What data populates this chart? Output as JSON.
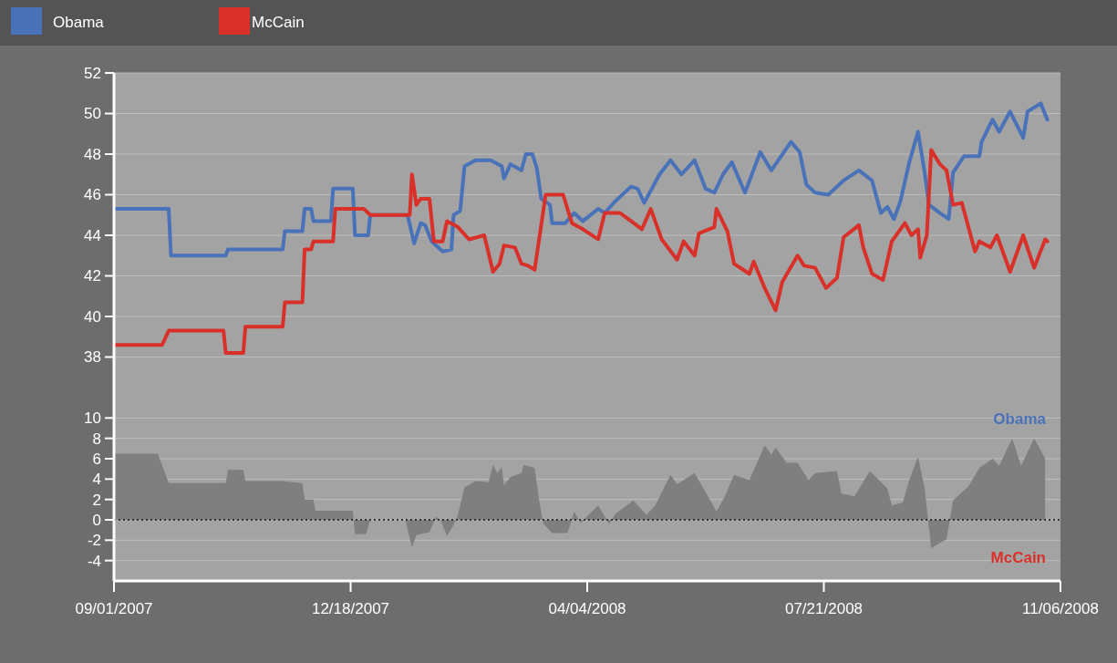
{
  "chart_data": [
    {
      "type": "line",
      "legend": "top",
      "grid": "y",
      "tick_labels": "y",
      "xlim": [
        "2007-09-01",
        "2008-11-06"
      ],
      "ylim": [
        36,
        52
      ],
      "yticks": [
        38,
        40,
        42,
        44,
        46,
        48,
        50,
        52
      ],
      "series": [
        {
          "name": "Obama",
          "color": "#4a72b8",
          "x": [
            "2007-09-01",
            "2007-09-26",
            "2007-09-27",
            "2007-10-22",
            "2007-10-23",
            "2007-11-17",
            "2007-11-18",
            "2007-11-26",
            "2007-11-27",
            "2007-11-30",
            "2007-12-01",
            "2007-12-09",
            "2007-12-10",
            "2007-12-19",
            "2007-12-20",
            "2007-12-26",
            "2007-12-27",
            "2008-01-13",
            "2008-01-16",
            "2008-01-19",
            "2008-01-21",
            "2008-01-24",
            "2008-01-29",
            "2008-02-02",
            "2008-02-03",
            "2008-02-06",
            "2008-02-08",
            "2008-02-13",
            "2008-02-20",
            "2008-02-25",
            "2008-02-26",
            "2008-02-29",
            "2008-03-05",
            "2008-03-07",
            "2008-03-10",
            "2008-03-12",
            "2008-03-14",
            "2008-03-18",
            "2008-03-19",
            "2008-03-25",
            "2008-03-29",
            "2008-04-02",
            "2008-04-09",
            "2008-04-12",
            "2008-04-17",
            "2008-04-24",
            "2008-04-27",
            "2008-04-30",
            "2008-05-07",
            "2008-05-12",
            "2008-05-17",
            "2008-05-23",
            "2008-05-28",
            "2008-06-01",
            "2008-06-05",
            "2008-06-09",
            "2008-06-15",
            "2008-06-22",
            "2008-06-27",
            "2008-07-06",
            "2008-07-10",
            "2008-07-13",
            "2008-07-17",
            "2008-07-23",
            "2008-07-30",
            "2008-08-06",
            "2008-08-12",
            "2008-08-16",
            "2008-08-19",
            "2008-08-22",
            "2008-08-25",
            "2008-08-29",
            "2008-09-02",
            "2008-09-05",
            "2008-09-07",
            "2008-09-12",
            "2008-09-16",
            "2008-09-18",
            "2008-09-23",
            "2008-09-30",
            "2008-10-01",
            "2008-10-06",
            "2008-10-09",
            "2008-10-14",
            "2008-10-20",
            "2008-10-22",
            "2008-10-28",
            "2008-10-31"
          ],
          "values": [
            45.3,
            45.3,
            43.0,
            43.0,
            43.3,
            43.3,
            44.2,
            44.2,
            45.3,
            45.3,
            44.7,
            44.7,
            46.3,
            46.3,
            44.0,
            44.0,
            45.0,
            45.0,
            43.6,
            44.6,
            44.5,
            43.7,
            43.2,
            43.3,
            45.0,
            45.2,
            47.4,
            47.7,
            47.7,
            47.4,
            46.8,
            47.5,
            47.2,
            48.0,
            48.0,
            47.3,
            45.8,
            45.5,
            44.6,
            44.6,
            45.1,
            44.7,
            45.3,
            45.1,
            45.7,
            46.4,
            46.3,
            45.6,
            47.0,
            47.7,
            47.0,
            47.7,
            46.3,
            46.1,
            47.0,
            47.6,
            46.1,
            48.1,
            47.2,
            48.6,
            48.1,
            46.5,
            46.1,
            46.0,
            46.7,
            47.2,
            46.7,
            45.1,
            45.4,
            44.8,
            45.7,
            47.6,
            49.1,
            47.1,
            45.5,
            45.1,
            44.8,
            47.1,
            47.9,
            47.9,
            48.6,
            49.7,
            49.1,
            50.1,
            48.8,
            50.1,
            50.5,
            49.7
          ]
        },
        {
          "name": "McCain",
          "color": "#d9302a",
          "x": [
            "2007-09-01",
            "2007-09-23",
            "2007-09-26",
            "2007-10-21",
            "2007-10-22",
            "2007-10-30",
            "2007-10-31",
            "2007-11-17",
            "2007-11-18",
            "2007-11-26",
            "2007-11-27",
            "2007-11-30",
            "2007-12-01",
            "2007-12-10",
            "2007-12-11",
            "2007-12-24",
            "2007-12-27",
            "2008-01-14",
            "2008-01-15",
            "2008-01-17",
            "2008-01-19",
            "2008-01-23",
            "2008-01-25",
            "2008-01-29",
            "2008-01-31",
            "2008-02-05",
            "2008-02-10",
            "2008-02-17",
            "2008-02-21",
            "2008-02-24",
            "2008-02-26",
            "2008-03-02",
            "2008-03-05",
            "2008-03-08",
            "2008-03-11",
            "2008-03-14",
            "2008-03-16",
            "2008-03-18",
            "2008-03-24",
            "2008-03-28",
            "2008-04-02",
            "2008-04-09",
            "2008-04-12",
            "2008-04-19",
            "2008-04-24",
            "2008-04-29",
            "2008-05-03",
            "2008-05-08",
            "2008-05-15",
            "2008-05-18",
            "2008-05-23",
            "2008-05-25",
            "2008-06-01",
            "2008-06-02",
            "2008-06-07",
            "2008-06-10",
            "2008-06-17",
            "2008-06-19",
            "2008-06-24",
            "2008-06-29",
            "2008-07-02",
            "2008-07-09",
            "2008-07-12",
            "2008-07-17",
            "2008-07-22",
            "2008-07-27",
            "2008-07-30",
            "2008-08-06",
            "2008-08-08",
            "2008-08-12",
            "2008-08-17",
            "2008-08-21",
            "2008-08-27",
            "2008-08-30",
            "2008-09-02",
            "2008-09-03",
            "2008-09-06",
            "2008-09-08",
            "2008-09-12",
            "2008-09-15",
            "2008-09-18",
            "2008-09-22",
            "2008-09-28",
            "2008-09-30",
            "2008-10-05",
            "2008-10-08",
            "2008-10-14",
            "2008-10-20",
            "2008-10-25",
            "2008-10-30",
            "2008-10-31"
          ],
          "values": [
            38.6,
            38.6,
            39.3,
            39.3,
            38.2,
            38.2,
            39.5,
            39.5,
            40.7,
            40.7,
            43.3,
            43.3,
            43.7,
            43.7,
            45.3,
            45.3,
            45.0,
            45.0,
            47.0,
            45.5,
            45.8,
            45.8,
            43.7,
            43.7,
            44.7,
            44.4,
            43.8,
            44.0,
            42.2,
            42.6,
            43.5,
            43.4,
            42.6,
            42.5,
            42.3,
            44.5,
            46.0,
            46.0,
            46.0,
            44.6,
            44.3,
            43.8,
            45.1,
            45.1,
            44.7,
            44.3,
            45.3,
            43.8,
            42.8,
            43.7,
            43.0,
            44.1,
            44.4,
            45.3,
            44.2,
            42.6,
            42.1,
            42.7,
            41.4,
            40.3,
            41.7,
            43.0,
            42.5,
            42.4,
            41.4,
            41.9,
            43.9,
            44.5,
            43.4,
            42.1,
            41.8,
            43.7,
            44.6,
            44.0,
            44.3,
            42.9,
            44.0,
            48.2,
            47.5,
            47.2,
            45.5,
            45.6,
            43.2,
            43.7,
            43.4,
            44.0,
            42.2,
            44.0,
            42.4,
            43.8,
            43.7
          ]
        }
      ]
    },
    {
      "type": "area",
      "grid": "y",
      "xlim": [
        "2007-09-01",
        "2008-11-06"
      ],
      "xticks": [
        {
          "value": "2007-09-01",
          "label": "09/01/2007"
        },
        {
          "value": "2007-12-18",
          "label": "12/18/2007"
        },
        {
          "value": "2008-04-04",
          "label": "04/04/2008"
        },
        {
          "value": "2008-07-21",
          "label": "07/21/2008"
        },
        {
          "value": "2008-11-06",
          "label": "11/06/2008"
        }
      ],
      "ylim": [
        -6,
        12
      ],
      "yticks": [
        -4,
        -2,
        0,
        2,
        4,
        6,
        8,
        10
      ],
      "ref_lines": [
        {
          "axis": "y",
          "value": 0,
          "line_style": "dotted",
          "color": "#333333"
        }
      ],
      "annotations": [
        "Obama",
        "McCain"
      ],
      "series": [
        {
          "color": "#7f7f7f",
          "x": [
            "2007-09-01",
            "2007-09-21",
            "2007-09-26",
            "2007-10-22",
            "2007-10-23",
            "2007-10-30",
            "2007-10-31",
            "2007-11-17",
            "2007-11-26",
            "2007-11-27",
            "2007-12-01",
            "2007-12-02",
            "2007-12-19",
            "2007-12-20",
            "2007-12-25",
            "2007-12-27",
            "2008-01-12",
            "2008-01-15",
            "2008-01-17",
            "2008-01-23",
            "2008-01-26",
            "2008-01-28",
            "2008-01-31",
            "2008-02-03",
            "2008-02-05",
            "2008-02-08",
            "2008-02-13",
            "2008-02-19",
            "2008-02-21",
            "2008-02-23",
            "2008-02-25",
            "2008-02-26",
            "2008-02-29",
            "2008-03-05",
            "2008-03-06",
            "2008-03-11",
            "2008-03-13",
            "2008-03-15",
            "2008-03-19",
            "2008-03-26",
            "2008-03-29",
            "2008-04-01",
            "2008-04-09",
            "2008-04-14",
            "2008-04-17",
            "2008-04-25",
            "2008-05-01",
            "2008-05-05",
            "2008-05-12",
            "2008-05-15",
            "2008-05-23",
            "2008-06-01",
            "2008-06-02",
            "2008-06-06",
            "2008-06-10",
            "2008-06-17",
            "2008-06-24",
            "2008-06-27",
            "2008-06-29",
            "2008-07-04",
            "2008-07-09",
            "2008-07-14",
            "2008-07-17",
            "2008-07-27",
            "2008-07-29",
            "2008-08-04",
            "2008-08-11",
            "2008-08-19",
            "2008-08-21",
            "2008-08-26",
            "2008-08-29",
            "2008-09-02",
            "2008-09-05",
            "2008-09-08",
            "2008-09-11",
            "2008-09-15",
            "2008-09-18",
            "2008-09-25",
            "2008-09-30",
            "2008-10-06",
            "2008-10-09",
            "2008-10-15",
            "2008-10-19",
            "2008-10-25",
            "2008-10-30"
          ],
          "values": [
            6.5,
            6.5,
            3.6,
            3.6,
            4.9,
            4.9,
            3.8,
            3.8,
            3.6,
            2.0,
            2.0,
            0.9,
            0.9,
            -1.4,
            -1.4,
            0,
            0,
            -2.7,
            -1.5,
            -1.2,
            0.3,
            0,
            -1.6,
            -0.5,
            0.5,
            3.2,
            3.8,
            3.7,
            5.4,
            4.6,
            5.2,
            3.4,
            4.2,
            4.6,
            5.4,
            5.1,
            2.0,
            -0.4,
            -1.3,
            -1.3,
            0.8,
            -0.3,
            1.4,
            -0.4,
            0.6,
            1.9,
            0.5,
            1.4,
            4.4,
            3.5,
            4.6,
            1.2,
            0.8,
            2.4,
            4.4,
            3.9,
            7.3,
            6.4,
            7.1,
            5.6,
            5.6,
            3.9,
            4.6,
            4.8,
            2.6,
            2.3,
            4.8,
            3.1,
            1.4,
            1.7,
            3.9,
            6.2,
            3.1,
            -2.8,
            -2.4,
            -1.9,
            1.9,
            3.3,
            5.1,
            6.0,
            5.3,
            8.0,
            5.3,
            8.0,
            6.0
          ]
        }
      ]
    }
  ]
}
